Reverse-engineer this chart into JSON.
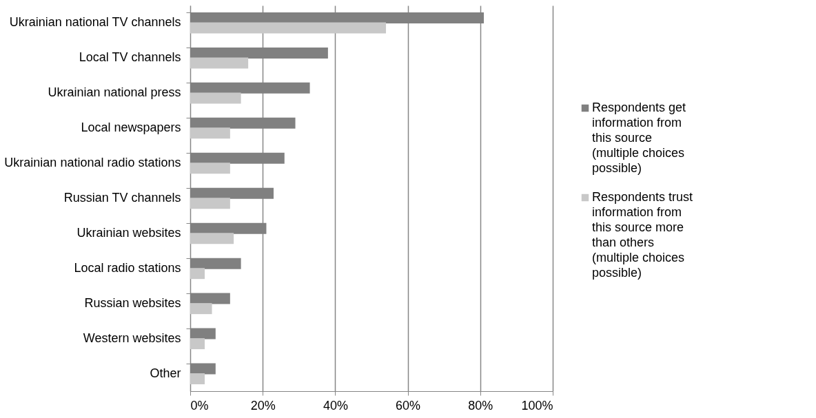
{
  "chart_data": {
    "type": "bar",
    "orientation": "horizontal",
    "categories": [
      "Ukrainian national TV channels",
      "Local TV channels",
      "Ukrainian national press",
      "Local newspapers",
      "Ukrainian national radio stations",
      "Russian TV channels",
      "Ukrainian websites",
      "Local radio stations",
      "Russian websites",
      "Western websites",
      "Other"
    ],
    "series": [
      {
        "name": "Respondents get information from this source (multiple choices possible)",
        "color": "#808080",
        "values": [
          81,
          38,
          33,
          29,
          26,
          23,
          21,
          14,
          11,
          7,
          7
        ]
      },
      {
        "name": "Respondents trust information from this source more than others (multiple choices possible)",
        "color": "#c8c8c8",
        "values": [
          54,
          16,
          14,
          11,
          11,
          11,
          12,
          4,
          6,
          4,
          4
        ]
      }
    ],
    "xlim": [
      0,
      100
    ],
    "xticks": [
      {
        "value": 0,
        "label": "0%"
      },
      {
        "value": 20,
        "label": "20%"
      },
      {
        "value": 40,
        "label": "40%"
      },
      {
        "value": 60,
        "label": "60%"
      },
      {
        "value": 80,
        "label": "80%"
      },
      {
        "value": 100,
        "label": "100%"
      }
    ],
    "grid": "x",
    "legend": "right"
  }
}
